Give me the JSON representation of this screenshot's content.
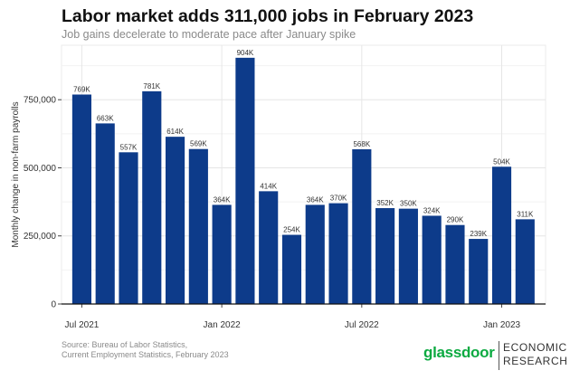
{
  "chart_data": {
    "type": "bar",
    "title": "Labor market adds 311,000 jobs in February 2023",
    "subtitle": "Job gains decelerate to moderate pace after January spike",
    "ylabel": "Monthly change in non-farm payrolls",
    "xlabel": "",
    "ylim": [
      0,
      950000
    ],
    "yticks": [
      0,
      250000,
      500000,
      750000
    ],
    "ytick_labels": [
      "0",
      "250,000",
      "500,000",
      "750,000"
    ],
    "xticks": [
      {
        "label": "Jul 2021",
        "at": "2021-07"
      },
      {
        "label": "Jan 2022",
        "at": "2022-01"
      },
      {
        "label": "Jul 2022",
        "at": "2022-07"
      },
      {
        "label": "Jan 2023",
        "at": "2023-01"
      }
    ],
    "categories": [
      "2021-07",
      "2021-08",
      "2021-09",
      "2021-10",
      "2021-11",
      "2021-12",
      "2022-01",
      "2022-02",
      "2022-03",
      "2022-04",
      "2022-05",
      "2022-06",
      "2022-07",
      "2022-08",
      "2022-09",
      "2022-10",
      "2022-11",
      "2022-12",
      "2023-01",
      "2023-02"
    ],
    "values": [
      769000,
      663000,
      557000,
      781000,
      614000,
      569000,
      364000,
      904000,
      414000,
      254000,
      364000,
      370000,
      568000,
      352000,
      350000,
      324000,
      290000,
      239000,
      504000,
      311000
    ],
    "data_labels": [
      "769K",
      "663K",
      "557K",
      "781K",
      "614K",
      "569K",
      "364K",
      "904K",
      "414K",
      "254K",
      "364K",
      "370K",
      "568K",
      "352K",
      "350K",
      "324K",
      "290K",
      "239K",
      "504K",
      "311K"
    ],
    "bar_color": "#0d3b8a",
    "grid": true,
    "legend": "none"
  },
  "footer": {
    "source_line1": "Source: Bureau of Labor Statistics,",
    "source_line2": " Current Employment Statistics, February 2023"
  },
  "branding": {
    "logo_text": "glassdoor",
    "unit_line1": "ECONOMIC",
    "unit_line2": "RESEARCH",
    "logo_color": "#0caa41"
  }
}
